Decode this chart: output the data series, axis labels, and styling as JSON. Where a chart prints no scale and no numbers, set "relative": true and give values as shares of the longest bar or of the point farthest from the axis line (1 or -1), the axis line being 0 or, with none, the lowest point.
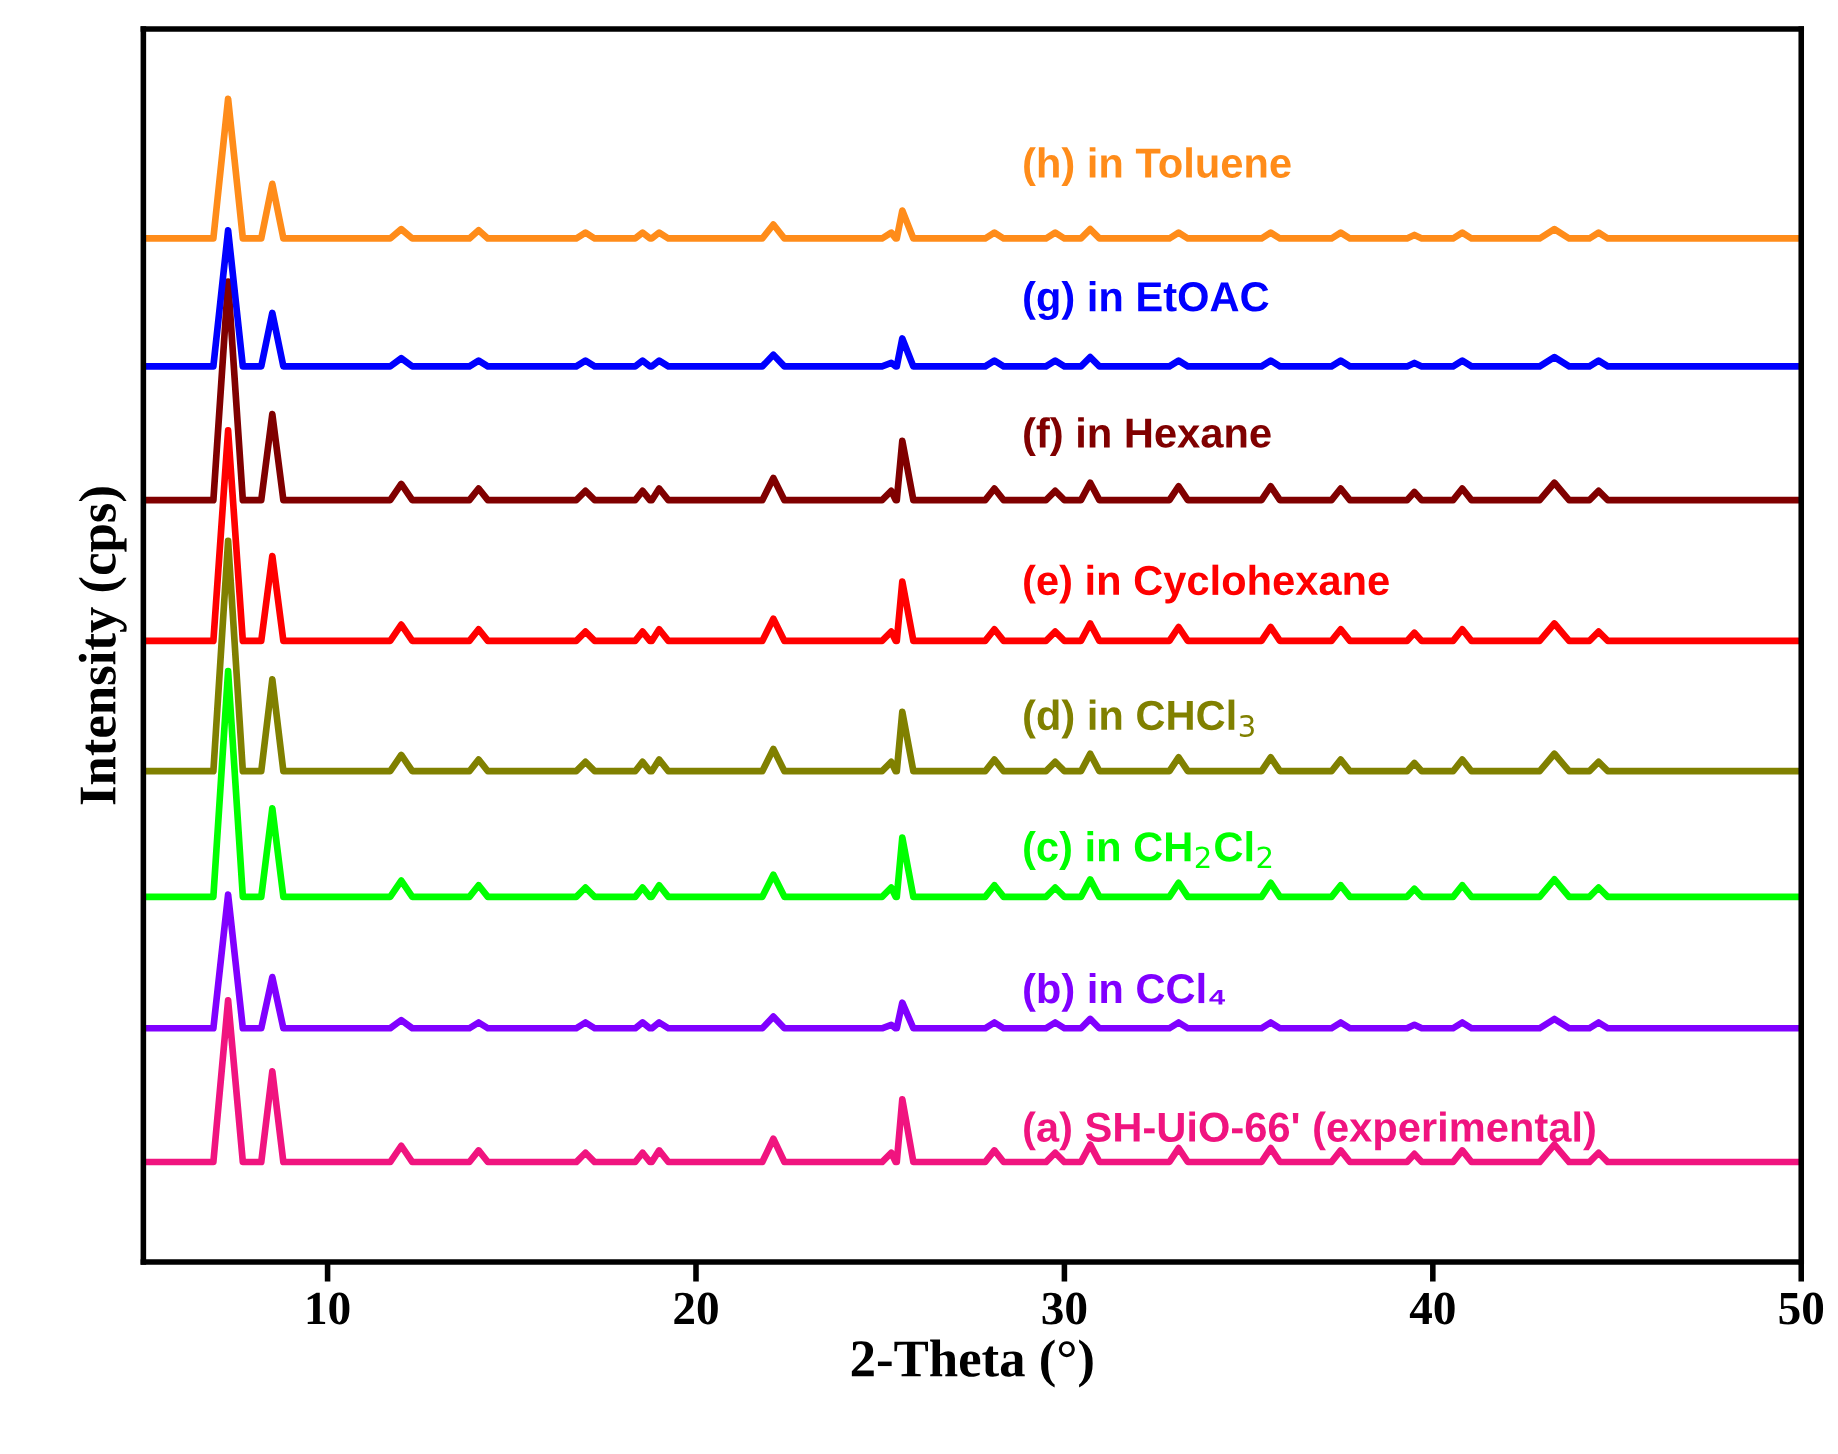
{
  "chart_data": {
    "type": "line",
    "relative": true,
    "xlabel": "2-Theta (°)",
    "ylabel": "Intensity (cps)",
    "xlim": [
      5,
      50
    ],
    "xticks": [
      10,
      20,
      30,
      40,
      50
    ],
    "grid": false,
    "marker": "none",
    "line_style": "solid",
    "tick_labels": "x",
    "x": [
      5,
      6.9,
      7.3,
      7.7,
      8.2,
      8.5,
      8.8,
      11.7,
      12.0,
      12.3,
      13.85,
      14.1,
      14.35,
      16.75,
      17.0,
      17.25,
      18.35,
      18.55,
      18.75,
      18.8,
      19.0,
      19.25,
      21.8,
      22.1,
      22.4,
      25.05,
      25.3,
      25.42,
      25.45,
      25.6,
      25.9,
      27.85,
      28.1,
      28.35,
      29.5,
      29.75,
      30.0,
      30.45,
      30.7,
      30.95,
      32.85,
      33.1,
      33.35,
      35.35,
      35.6,
      35.85,
      37.25,
      37.5,
      37.75,
      39.3,
      39.5,
      39.7,
      40.55,
      40.8,
      41.05,
      42.9,
      43.3,
      43.7,
      44.25,
      44.5,
      44.75,
      50
    ],
    "series": [
      {
        "name": "(a) SH-UiO-66' (experimental)",
        "color": "#f0147f",
        "values": [
          0.086,
          0.086,
          0.225,
          0.086,
          0.086,
          0.164,
          0.086,
          0.086,
          0.1,
          0.086,
          0.086,
          0.096,
          0.086,
          0.086,
          0.094,
          0.086,
          0.086,
          0.094,
          0.086,
          0.086,
          0.096,
          0.086,
          0.086,
          0.106,
          0.086,
          0.086,
          0.094,
          0.086,
          0.086,
          0.14,
          0.086,
          0.086,
          0.096,
          0.086,
          0.086,
          0.094,
          0.086,
          0.086,
          0.101,
          0.086,
          0.086,
          0.098,
          0.086,
          0.086,
          0.098,
          0.086,
          0.086,
          0.096,
          0.086,
          0.086,
          0.093,
          0.086,
          0.086,
          0.096,
          0.086,
          0.086,
          0.101,
          0.086,
          0.086,
          0.094,
          0.086,
          0.086
        ]
      },
      {
        "name": "(b) in CCl₄",
        "color": "#8000ff",
        "values": [
          0.201,
          0.201,
          0.316,
          0.201,
          0.201,
          0.245,
          0.201,
          0.201,
          0.208,
          0.201,
          0.201,
          0.206,
          0.201,
          0.201,
          0.206,
          0.201,
          0.201,
          0.206,
          0.201,
          0.201,
          0.206,
          0.201,
          0.201,
          0.211,
          0.201,
          0.201,
          0.204,
          0.201,
          0.201,
          0.223,
          0.201,
          0.201,
          0.206,
          0.201,
          0.201,
          0.206,
          0.201,
          0.201,
          0.209,
          0.201,
          0.201,
          0.206,
          0.201,
          0.201,
          0.206,
          0.201,
          0.201,
          0.206,
          0.201,
          0.201,
          0.204,
          0.201,
          0.201,
          0.206,
          0.201,
          0.201,
          0.209,
          0.201,
          0.201,
          0.206,
          0.201,
          0.201
        ]
      },
      {
        "name": "(c) in CH$_{2}$Cl$_{2}$",
        "color": "#00ff00",
        "values": [
          0.314,
          0.314,
          0.508,
          0.314,
          0.314,
          0.39,
          0.314,
          0.314,
          0.328,
          0.314,
          0.314,
          0.324,
          0.314,
          0.314,
          0.322,
          0.314,
          0.314,
          0.322,
          0.314,
          0.314,
          0.324,
          0.314,
          0.314,
          0.333,
          0.314,
          0.314,
          0.322,
          0.314,
          0.314,
          0.365,
          0.314,
          0.314,
          0.324,
          0.314,
          0.314,
          0.322,
          0.314,
          0.314,
          0.329,
          0.314,
          0.314,
          0.326,
          0.314,
          0.314,
          0.326,
          0.314,
          0.314,
          0.324,
          0.314,
          0.314,
          0.321,
          0.314,
          0.314,
          0.324,
          0.314,
          0.314,
          0.329,
          0.314,
          0.314,
          0.322,
          0.314,
          0.314
        ]
      },
      {
        "name": "(d) in CHCl$_{3}$",
        "color": "#808000",
        "values": [
          0.422,
          0.422,
          0.62,
          0.422,
          0.422,
          0.501,
          0.422,
          0.422,
          0.436,
          0.422,
          0.422,
          0.432,
          0.422,
          0.422,
          0.43,
          0.422,
          0.422,
          0.43,
          0.422,
          0.422,
          0.432,
          0.422,
          0.422,
          0.441,
          0.422,
          0.422,
          0.43,
          0.422,
          0.422,
          0.473,
          0.422,
          0.422,
          0.432,
          0.422,
          0.422,
          0.43,
          0.422,
          0.422,
          0.437,
          0.422,
          0.422,
          0.434,
          0.422,
          0.422,
          0.434,
          0.422,
          0.422,
          0.432,
          0.422,
          0.422,
          0.429,
          0.422,
          0.422,
          0.432,
          0.422,
          0.422,
          0.437,
          0.422,
          0.422,
          0.43,
          0.422,
          0.422
        ]
      },
      {
        "name": "(e) in Cyclohexane",
        "color": "#ff0000",
        "values": [
          0.534,
          0.534,
          0.715,
          0.534,
          0.534,
          0.607,
          0.534,
          0.534,
          0.548,
          0.534,
          0.534,
          0.544,
          0.534,
          0.534,
          0.542,
          0.534,
          0.534,
          0.542,
          0.534,
          0.534,
          0.544,
          0.534,
          0.534,
          0.553,
          0.534,
          0.534,
          0.542,
          0.534,
          0.534,
          0.585,
          0.534,
          0.534,
          0.544,
          0.534,
          0.534,
          0.542,
          0.534,
          0.534,
          0.549,
          0.534,
          0.534,
          0.546,
          0.534,
          0.534,
          0.546,
          0.534,
          0.534,
          0.544,
          0.534,
          0.534,
          0.541,
          0.534,
          0.534,
          0.544,
          0.534,
          0.534,
          0.549,
          0.534,
          0.534,
          0.542,
          0.534,
          0.534
        ]
      },
      {
        "name": "(f) in Hexane",
        "color": "#800000",
        "values": [
          0.655,
          0.655,
          0.843,
          0.655,
          0.655,
          0.729,
          0.655,
          0.655,
          0.669,
          0.655,
          0.655,
          0.665,
          0.655,
          0.655,
          0.663,
          0.655,
          0.655,
          0.663,
          0.655,
          0.655,
          0.665,
          0.655,
          0.655,
          0.674,
          0.655,
          0.655,
          0.663,
          0.655,
          0.655,
          0.706,
          0.655,
          0.655,
          0.665,
          0.655,
          0.655,
          0.663,
          0.655,
          0.655,
          0.67,
          0.655,
          0.655,
          0.667,
          0.655,
          0.655,
          0.667,
          0.655,
          0.655,
          0.665,
          0.655,
          0.655,
          0.662,
          0.655,
          0.655,
          0.665,
          0.655,
          0.655,
          0.67,
          0.655,
          0.655,
          0.663,
          0.655,
          0.655
        ]
      },
      {
        "name": "(g) in EtOAC",
        "color": "#0000ff",
        "values": [
          0.77,
          0.77,
          0.887,
          0.77,
          0.77,
          0.816,
          0.77,
          0.77,
          0.777,
          0.77,
          0.77,
          0.775,
          0.77,
          0.77,
          0.775,
          0.77,
          0.77,
          0.775,
          0.77,
          0.77,
          0.775,
          0.77,
          0.77,
          0.78,
          0.77,
          0.77,
          0.773,
          0.77,
          0.77,
          0.794,
          0.77,
          0.77,
          0.775,
          0.77,
          0.77,
          0.775,
          0.77,
          0.77,
          0.778,
          0.77,
          0.77,
          0.775,
          0.77,
          0.77,
          0.775,
          0.77,
          0.77,
          0.775,
          0.77,
          0.77,
          0.773,
          0.77,
          0.77,
          0.775,
          0.77,
          0.77,
          0.778,
          0.77,
          0.77,
          0.775,
          0.77,
          0.77
        ]
      },
      {
        "name": "(h) in Toluene",
        "color": "#ff8c1a",
        "values": [
          0.88,
          0.88,
          1.0,
          0.88,
          0.88,
          0.927,
          0.88,
          0.88,
          0.888,
          0.88,
          0.88,
          0.887,
          0.88,
          0.88,
          0.885,
          0.88,
          0.88,
          0.885,
          0.88,
          0.88,
          0.885,
          0.88,
          0.88,
          0.892,
          0.88,
          0.88,
          0.885,
          0.88,
          0.88,
          0.904,
          0.88,
          0.88,
          0.885,
          0.88,
          0.88,
          0.885,
          0.88,
          0.88,
          0.888,
          0.88,
          0.88,
          0.885,
          0.88,
          0.88,
          0.885,
          0.88,
          0.88,
          0.885,
          0.88,
          0.88,
          0.883,
          0.88,
          0.88,
          0.885,
          0.88,
          0.88,
          0.888,
          0.88,
          0.88,
          0.885,
          0.88,
          0.88
        ]
      }
    ]
  }
}
